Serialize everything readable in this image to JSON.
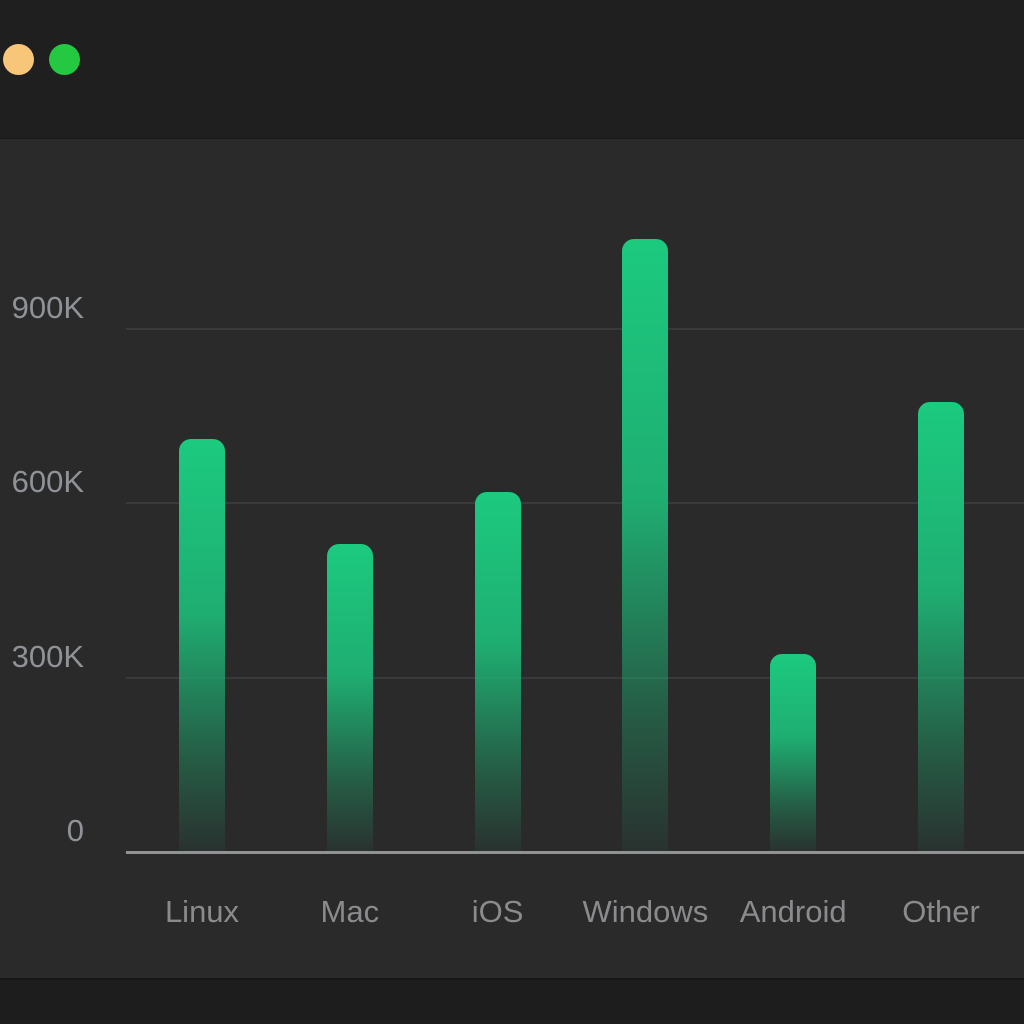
{
  "window": {
    "title": "",
    "controls": [
      {
        "name": "minimize",
        "color": "#f8c678"
      },
      {
        "name": "zoom",
        "color": "#24c941"
      }
    ]
  },
  "chart_data": {
    "type": "bar",
    "title": "",
    "xlabel": "",
    "ylabel": "",
    "categories": [
      "Linux",
      "Mac",
      "iOS",
      "Windows",
      "Android",
      "Other"
    ],
    "values": [
      710000,
      530000,
      620000,
      1055000,
      340000,
      775000
    ],
    "y_ticks": [
      {
        "value": 0,
        "label": "0"
      },
      {
        "value": 300000,
        "label": "300K"
      },
      {
        "value": 600000,
        "label": "600K"
      },
      {
        "value": 900000,
        "label": "900K"
      }
    ],
    "ylim": [
      0,
      1100000
    ],
    "grid": "horizontal",
    "legend": "none"
  },
  "colors": {
    "page_bg": "#2a2a2b",
    "titlebar_bg": "#1f1f20",
    "footer_bg": "#1d1d1e",
    "gridline": "#3a3a3c",
    "axis_line": "#919294",
    "y_tick_label": "#8f9297",
    "x_tick_label": "#8a8b8d",
    "bar_gradient_top": "#1cca7e",
    "bar_gradient_mid": "#1fae72",
    "bar_gradient_bottom": "rgba(30,170,110,0.06)"
  }
}
